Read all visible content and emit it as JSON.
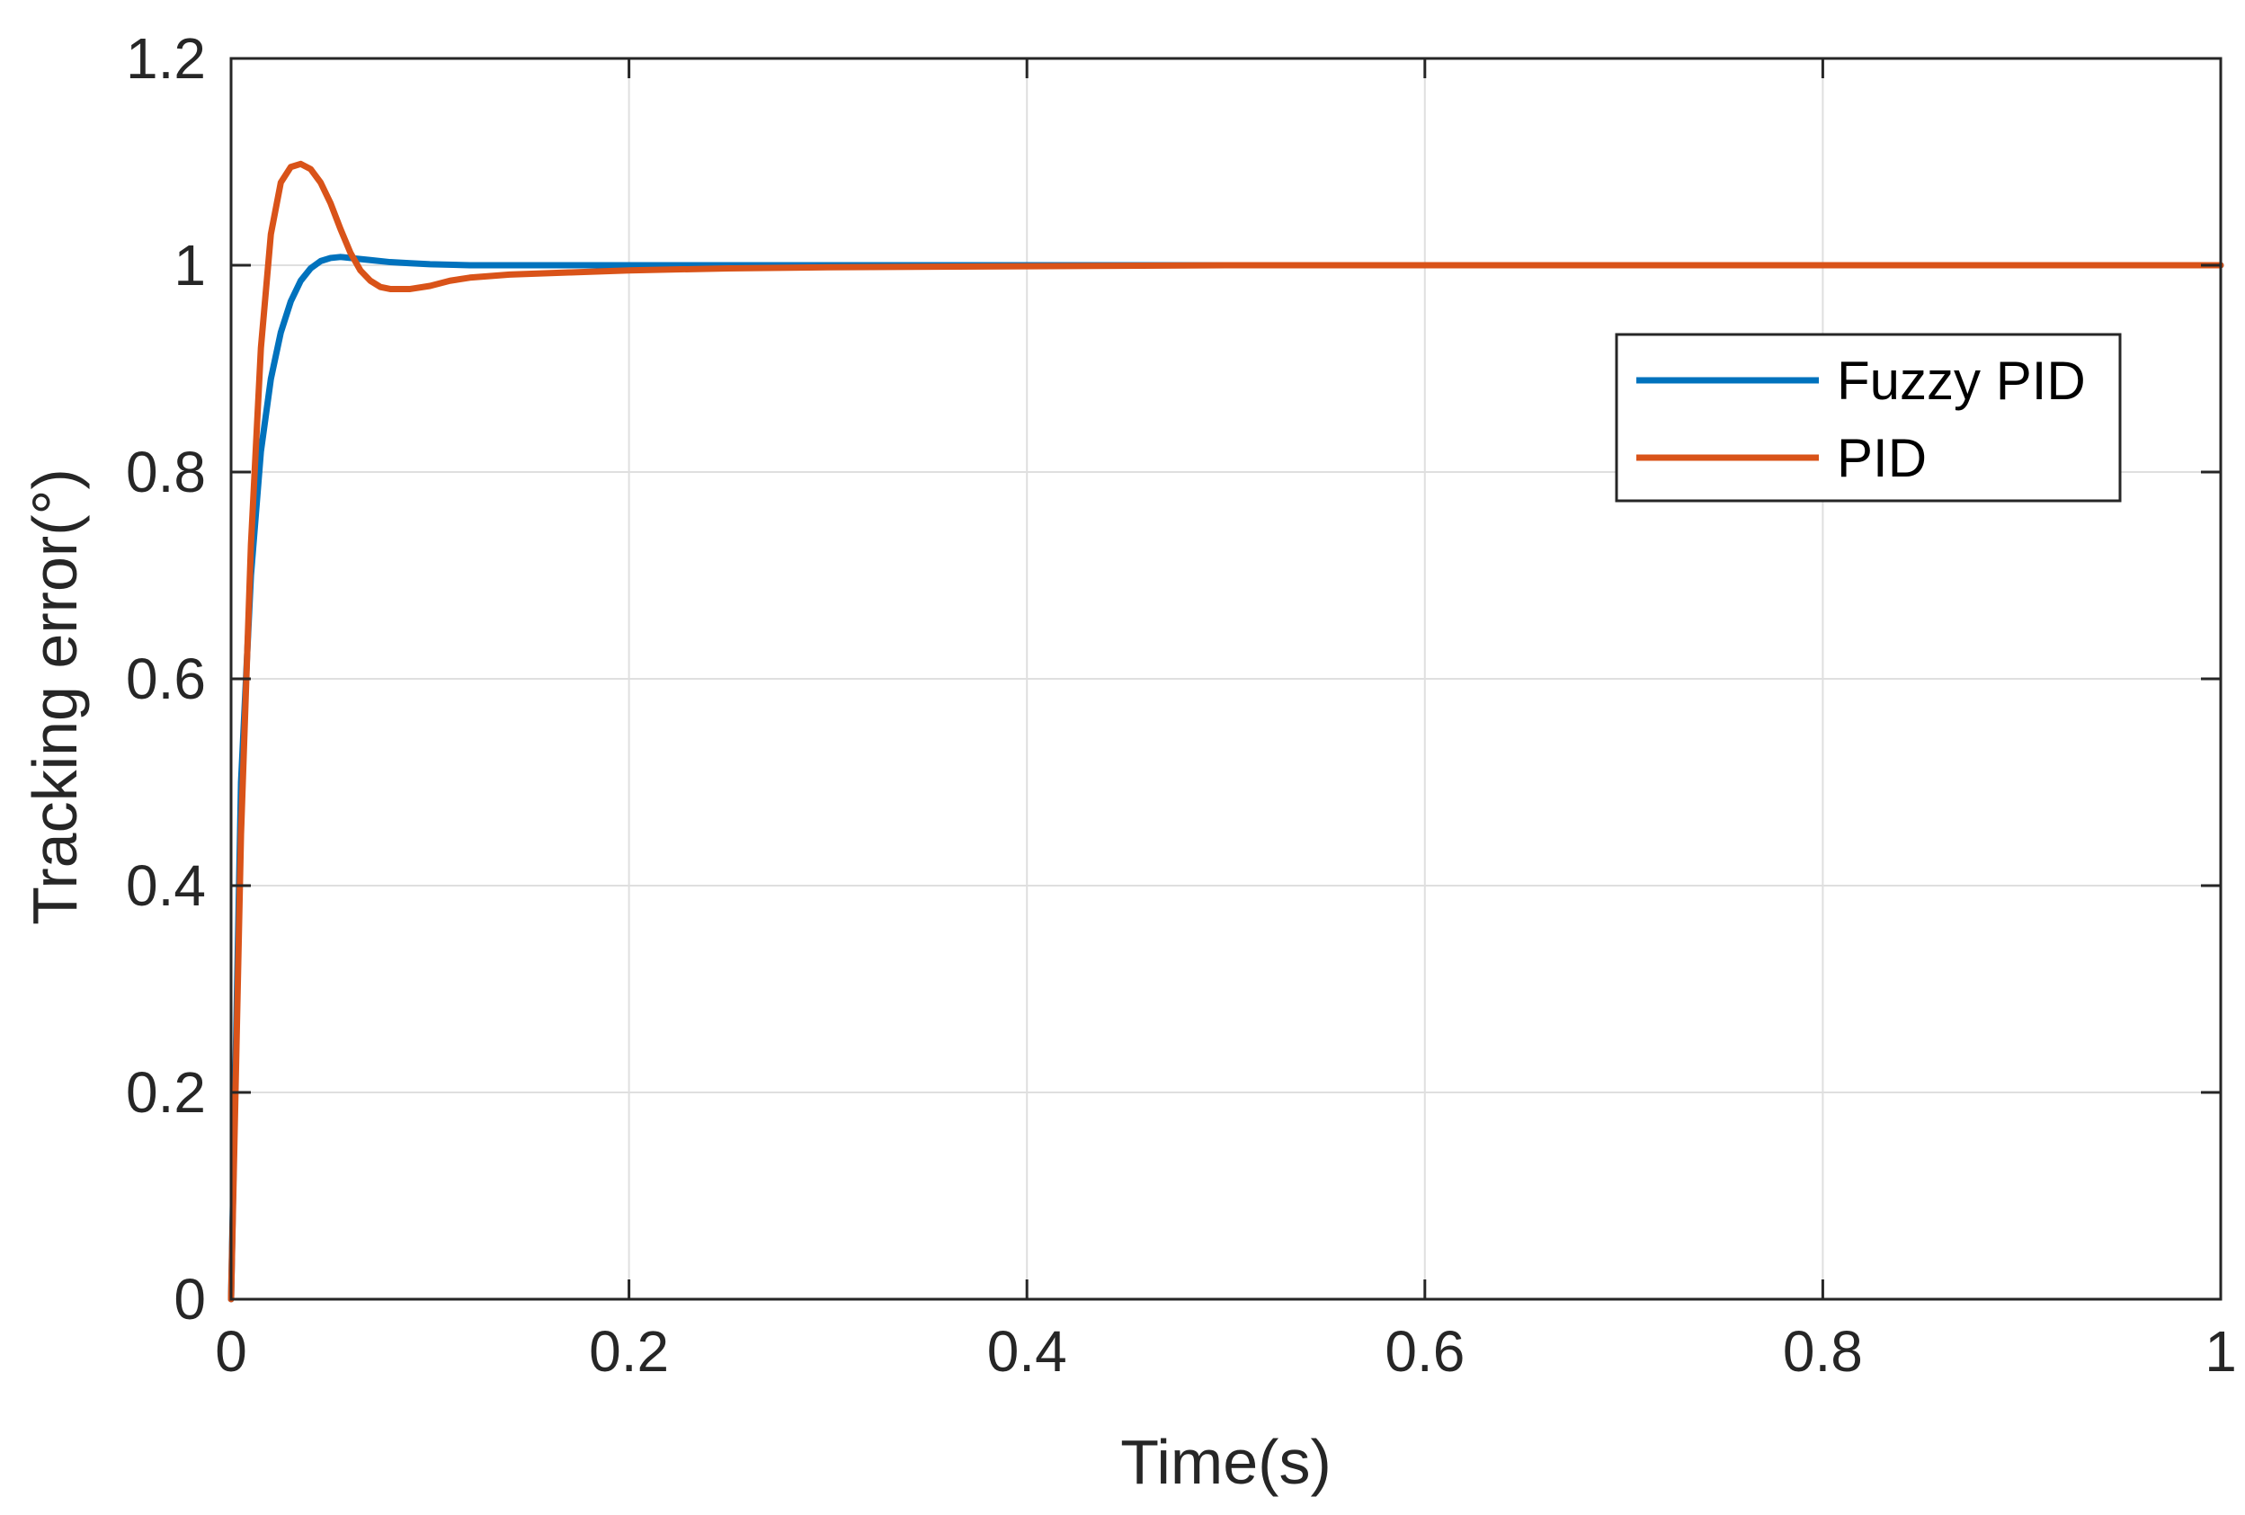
{
  "chart_data": {
    "type": "line",
    "xlabel": "Time(s)",
    "ylabel": "Tracking error(°)",
    "xlim": [
      0,
      1
    ],
    "ylim": [
      0,
      1.2
    ],
    "xticks": [
      0,
      0.2,
      0.4,
      0.6,
      0.8,
      1
    ],
    "xtick_labels": [
      "0",
      "0.2",
      "0.4",
      "0.6",
      "0.8",
      "1"
    ],
    "yticks": [
      0,
      0.2,
      0.4,
      0.6,
      0.8,
      1,
      1.2
    ],
    "ytick_labels": [
      "0",
      "0.2",
      "0.4",
      "0.6",
      "0.8",
      "1",
      "1.2"
    ],
    "grid": true,
    "legend_position": "top-right",
    "series": [
      {
        "name": "Fuzzy PID",
        "color": "#0072BD",
        "x": [
          0,
          0.005,
          0.01,
          0.015,
          0.02,
          0.025,
          0.03,
          0.035,
          0.04,
          0.045,
          0.05,
          0.055,
          0.06,
          0.065,
          0.07,
          0.08,
          0.09,
          0.1,
          0.12,
          0.15,
          0.2,
          0.3,
          0.5,
          0.7,
          1.0
        ],
        "y": [
          0,
          0.5,
          0.7,
          0.82,
          0.89,
          0.935,
          0.965,
          0.985,
          0.997,
          1.004,
          1.007,
          1.008,
          1.007,
          1.006,
          1.005,
          1.003,
          1.002,
          1.001,
          1.0,
          1.0,
          1.0,
          1.0,
          1.0,
          1.0,
          1.0
        ]
      },
      {
        "name": "PID",
        "color": "#D95319",
        "x": [
          0,
          0.005,
          0.01,
          0.015,
          0.02,
          0.025,
          0.03,
          0.035,
          0.04,
          0.045,
          0.05,
          0.055,
          0.06,
          0.065,
          0.07,
          0.075,
          0.08,
          0.09,
          0.1,
          0.11,
          0.12,
          0.14,
          0.17,
          0.2,
          0.25,
          0.3,
          0.4,
          0.5,
          0.7,
          1.0
        ],
        "y": [
          0,
          0.45,
          0.73,
          0.92,
          1.03,
          1.08,
          1.095,
          1.098,
          1.093,
          1.08,
          1.06,
          1.035,
          1.012,
          0.995,
          0.985,
          0.979,
          0.977,
          0.977,
          0.98,
          0.985,
          0.988,
          0.991,
          0.993,
          0.995,
          0.997,
          0.998,
          0.999,
          1.0,
          1.0,
          1.0
        ]
      }
    ]
  }
}
